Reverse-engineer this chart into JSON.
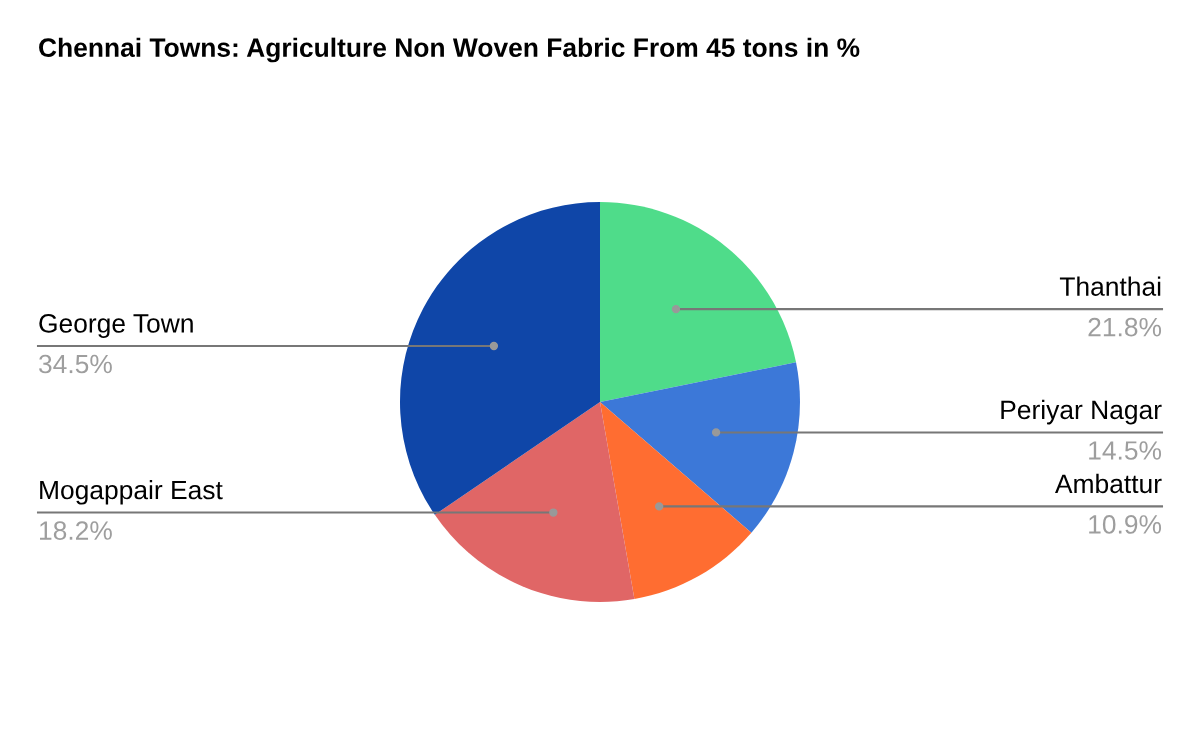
{
  "chart_data": {
    "type": "pie",
    "title": "Chennai Towns: Agriculture Non Woven Fabric From 45 tons in %",
    "categories": [
      "Thanthai",
      "Periyar Nagar",
      "Ambattur",
      "Mogappair East",
      "George Town"
    ],
    "values": [
      21.8,
      14.5,
      10.9,
      18.2,
      34.5
    ],
    "value_labels": [
      "21.8%",
      "14.5%",
      "10.9%",
      "18.2%",
      "34.5%"
    ],
    "colors": [
      "#4fdc8a",
      "#3c78d8",
      "#ff6d31",
      "#e06666",
      "#0f46a8"
    ]
  }
}
